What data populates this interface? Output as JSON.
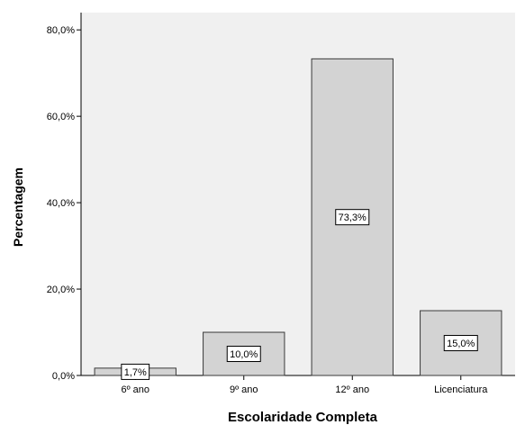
{
  "chart_data": {
    "type": "bar",
    "title": "",
    "xlabel": "Escolaridade Completa",
    "ylabel": "Percentagem",
    "categories": [
      "6º ano",
      "9º ano",
      "12º ano",
      "Licenciatura"
    ],
    "values": [
      1.7,
      10.0,
      73.3,
      15.0
    ],
    "data_labels": [
      "1,7%",
      "10,0%",
      "73,3%",
      "15,0%"
    ],
    "ylim": [
      0,
      84
    ],
    "yticks": [
      0,
      20,
      40,
      60,
      80
    ],
    "ytick_labels": [
      "0,0%",
      "20,0%",
      "40,0%",
      "60,0%",
      "80,0%"
    ],
    "grid": false,
    "colors": {
      "plot_background": "#f0f0f0",
      "bar_fill": "#d3d3d3",
      "bar_stroke": "#3a3a3a",
      "axis": "#000000"
    }
  }
}
